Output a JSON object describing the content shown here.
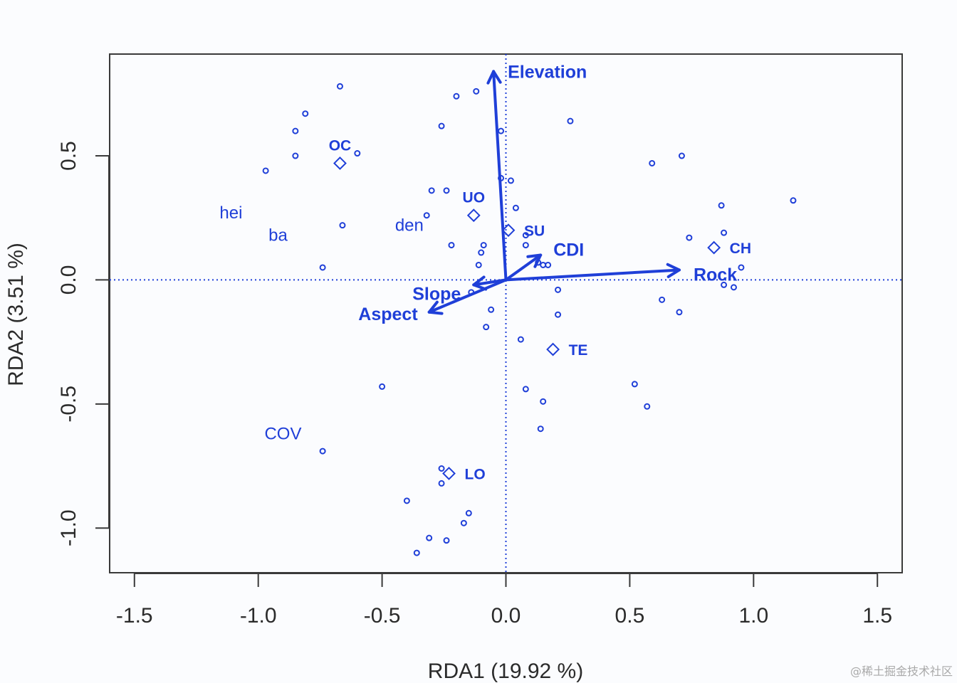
{
  "chart_data": {
    "type": "scatter",
    "title": "",
    "xlabel": "RDA1 (19.92 %)",
    "ylabel": "RDA2 (3.51 %)",
    "xlim": [
      -1.6,
      1.6
    ],
    "ylim": [
      -1.18,
      0.91
    ],
    "x_ticks": [
      -1.5,
      -1.0,
      -0.5,
      0.0,
      0.5,
      1.0,
      1.5
    ],
    "x_tick_labels": [
      "-1.5",
      "-1.0",
      "-0.5",
      "0.0",
      "0.5",
      "1.0",
      "1.5"
    ],
    "y_ticks": [
      -1.0,
      -0.5,
      0.0,
      0.5
    ],
    "y_tick_labels": [
      "-1.0",
      "-0.5",
      "0.0",
      "0.5"
    ],
    "reference_lines": {
      "x": 0,
      "y": 0,
      "style": "dotted"
    },
    "color": "#1f3fd8",
    "sites": [
      {
        "x": -0.67,
        "y": 0.78
      },
      {
        "x": -0.81,
        "y": 0.67
      },
      {
        "x": -0.85,
        "y": 0.6
      },
      {
        "x": -0.85,
        "y": 0.5
      },
      {
        "x": -0.97,
        "y": 0.44
      },
      {
        "x": -0.6,
        "y": 0.51
      },
      {
        "x": -0.66,
        "y": 0.22
      },
      {
        "x": -0.74,
        "y": 0.05
      },
      {
        "x": -0.2,
        "y": 0.74
      },
      {
        "x": -0.12,
        "y": 0.76
      },
      {
        "x": -0.26,
        "y": 0.62
      },
      {
        "x": -0.02,
        "y": 0.6
      },
      {
        "x": -0.3,
        "y": 0.36
      },
      {
        "x": -0.24,
        "y": 0.36
      },
      {
        "x": -0.32,
        "y": 0.26
      },
      {
        "x": -0.02,
        "y": 0.41
      },
      {
        "x": 0.02,
        "y": 0.4
      },
      {
        "x": 0.04,
        "y": 0.29
      },
      {
        "x": 0.08,
        "y": 0.18
      },
      {
        "x": 0.08,
        "y": 0.14
      },
      {
        "x": -0.22,
        "y": 0.14
      },
      {
        "x": -0.09,
        "y": 0.14
      },
      {
        "x": -0.1,
        "y": 0.11
      },
      {
        "x": -0.11,
        "y": 0.06
      },
      {
        "x": 0.13,
        "y": 0.07
      },
      {
        "x": 0.15,
        "y": 0.06
      },
      {
        "x": 0.17,
        "y": 0.06
      },
      {
        "x": -0.14,
        "y": -0.05
      },
      {
        "x": 0.21,
        "y": -0.04
      },
      {
        "x": -0.06,
        "y": -0.12
      },
      {
        "x": -0.08,
        "y": -0.19
      },
      {
        "x": 0.21,
        "y": -0.14
      },
      {
        "x": 0.06,
        "y": -0.24
      },
      {
        "x": 0.26,
        "y": 0.64
      },
      {
        "x": 0.59,
        "y": 0.47
      },
      {
        "x": 0.71,
        "y": 0.5
      },
      {
        "x": 1.16,
        "y": 0.32
      },
      {
        "x": 0.87,
        "y": 0.3
      },
      {
        "x": 0.88,
        "y": 0.19
      },
      {
        "x": 0.74,
        "y": 0.17
      },
      {
        "x": 0.95,
        "y": 0.05
      },
      {
        "x": 0.88,
        "y": -0.02
      },
      {
        "x": 0.92,
        "y": -0.03
      },
      {
        "x": 0.63,
        "y": -0.08
      },
      {
        "x": 0.7,
        "y": -0.13
      },
      {
        "x": 0.52,
        "y": -0.42
      },
      {
        "x": 0.57,
        "y": -0.51
      },
      {
        "x": 0.08,
        "y": -0.44
      },
      {
        "x": 0.15,
        "y": -0.49
      },
      {
        "x": 0.14,
        "y": -0.6
      },
      {
        "x": -0.5,
        "y": -0.43
      },
      {
        "x": -0.74,
        "y": -0.69
      },
      {
        "x": -0.26,
        "y": -0.76
      },
      {
        "x": -0.26,
        "y": -0.82
      },
      {
        "x": -0.4,
        "y": -0.89
      },
      {
        "x": -0.15,
        "y": -0.94
      },
      {
        "x": -0.17,
        "y": -0.98
      },
      {
        "x": -0.31,
        "y": -1.04
      },
      {
        "x": -0.24,
        "y": -1.05
      },
      {
        "x": -0.36,
        "y": -1.1
      }
    ],
    "group_centroids": [
      {
        "label": "OC",
        "x": -0.67,
        "y": 0.47
      },
      {
        "label": "UO",
        "x": -0.13,
        "y": 0.26
      },
      {
        "label": "SU",
        "x": 0.01,
        "y": 0.2
      },
      {
        "label": "CH",
        "x": 0.84,
        "y": 0.13
      },
      {
        "label": "TE",
        "x": 0.19,
        "y": -0.28
      },
      {
        "label": "LO",
        "x": -0.23,
        "y": -0.78
      }
    ],
    "species": [
      {
        "label": "hei",
        "x": -1.11,
        "y": 0.27
      },
      {
        "label": "ba",
        "x": -0.92,
        "y": 0.18
      },
      {
        "label": "den",
        "x": -0.39,
        "y": 0.22
      },
      {
        "label": "COV",
        "x": -0.9,
        "y": -0.62
      }
    ],
    "environment_vectors": [
      {
        "label": "Elevation",
        "x": -0.05,
        "y": 0.84
      },
      {
        "label": "Rock",
        "x": 0.7,
        "y": 0.04
      },
      {
        "label": "CDI",
        "x": 0.14,
        "y": 0.1
      },
      {
        "label": "Slope",
        "x": -0.13,
        "y": -0.02
      },
      {
        "label": "Aspect",
        "x": -0.31,
        "y": -0.13
      }
    ]
  },
  "watermark": "@稀土掘金技术社区"
}
